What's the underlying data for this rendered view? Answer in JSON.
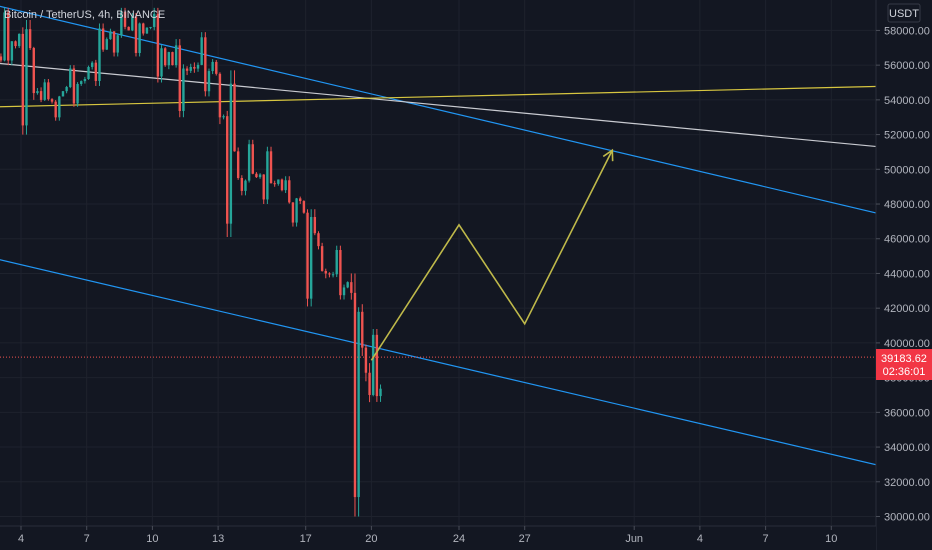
{
  "header": {
    "symbol_title": "Bitcoin / TetherUS, 4h, BINANCE"
  },
  "currency": {
    "label": "USDT"
  },
  "price_tag": {
    "price": "39183.62",
    "countdown": "02:36:01"
  },
  "colors": {
    "background": "#131722",
    "grid": "#1e222d",
    "up": "#26a69a",
    "down": "#ef5350",
    "trendline_blue": "#2196f3",
    "trendline_white": "#c9cbd1",
    "horizontal_yellow": "#d7c640",
    "projection_yellow": "#bfb94a",
    "price_line": "#ef5350",
    "axis_text": "#b2b5be"
  },
  "chart_data": {
    "type": "candlestick",
    "title": "Bitcoin / TetherUS, 4h, BINANCE",
    "timeframe": "4h",
    "x_tick_labels": [
      "4",
      "7",
      "10",
      "13",
      "17",
      "20",
      "24",
      "27",
      "Jun",
      "4",
      "7",
      "10"
    ],
    "x_tick_dates": [
      "2021-05-04",
      "2021-05-07",
      "2021-05-10",
      "2021-05-13",
      "2021-05-17",
      "2021-05-20",
      "2021-05-24",
      "2021-05-27",
      "2021-06-01",
      "2021-06-04",
      "2021-06-07",
      "2021-06-10"
    ],
    "y_ticks": [
      30000,
      32000,
      34000,
      36000,
      38000,
      40000,
      42000,
      44000,
      46000,
      48000,
      50000,
      52000,
      54000,
      56000,
      58000
    ],
    "y_tick_labels": [
      "30000.00",
      "32000.00",
      "34000.00",
      "36000.00",
      "38000.00",
      "40000.00",
      "42000.00",
      "44000.00",
      "46000.00",
      "48000.00",
      "50000.00",
      "52000.00",
      "54000.00",
      "56000.00",
      "58000.00"
    ],
    "ylim": [
      29500,
      59800
    ],
    "grid": true,
    "last_price": 39183.62,
    "candles": [
      {
        "date": "2021-05-03",
        "o": 56500,
        "h": 59300,
        "l": 56000,
        "c": 57800
      },
      {
        "date": "2021-05-04",
        "o": 57800,
        "h": 58600,
        "l": 52000,
        "c": 54000
      },
      {
        "date": "2021-05-05",
        "o": 54000,
        "h": 55200,
        "l": 52800,
        "c": 54500
      },
      {
        "date": "2021-05-06",
        "o": 54500,
        "h": 56000,
        "l": 53600,
        "c": 55200
      },
      {
        "date": "2021-05-07",
        "o": 55200,
        "h": 58400,
        "l": 54800,
        "c": 57500
      },
      {
        "date": "2021-05-08",
        "o": 57500,
        "h": 59300,
        "l": 56500,
        "c": 58000
      },
      {
        "date": "2021-05-09",
        "o": 58000,
        "h": 59000,
        "l": 56500,
        "c": 58200
      },
      {
        "date": "2021-05-10",
        "o": 58200,
        "h": 59300,
        "l": 55000,
        "c": 56000
      },
      {
        "date": "2021-05-11",
        "o": 56000,
        "h": 57500,
        "l": 53000,
        "c": 55800
      },
      {
        "date": "2021-05-12",
        "o": 55800,
        "h": 57900,
        "l": 54200,
        "c": 55500
      },
      {
        "date": "2021-05-13",
        "o": 55500,
        "h": 55700,
        "l": 46100,
        "c": 49500
      },
      {
        "date": "2021-05-14",
        "o": 49500,
        "h": 51700,
        "l": 48500,
        "c": 49700
      },
      {
        "date": "2021-05-15",
        "o": 49700,
        "h": 51300,
        "l": 48000,
        "c": 48800
      },
      {
        "date": "2021-05-16",
        "o": 48800,
        "h": 49600,
        "l": 46700,
        "c": 47500
      },
      {
        "date": "2021-05-17",
        "o": 47500,
        "h": 47700,
        "l": 42100,
        "c": 44000
      },
      {
        "date": "2021-05-18",
        "o": 44000,
        "h": 45600,
        "l": 42500,
        "c": 43500
      },
      {
        "date": "2021-05-19",
        "o": 43500,
        "h": 44000,
        "l": 30000,
        "c": 37000
      },
      {
        "date": "2021-05-20",
        "o": 37000,
        "h": 40800,
        "l": 36600,
        "c": 39183.62
      }
    ],
    "drawings": [
      {
        "kind": "trendline",
        "color": "blue",
        "points": [
          [
            "2021-05-03",
            59400
          ],
          [
            "2021-06-13",
            47200
          ]
        ]
      },
      {
        "kind": "trendline",
        "color": "blue",
        "points": [
          [
            "2021-05-03",
            44800
          ],
          [
            "2021-06-13",
            32700
          ]
        ]
      },
      {
        "kind": "trendline",
        "color": "white",
        "points": [
          [
            "2021-05-03",
            56100
          ],
          [
            "2021-06-13",
            51200
          ]
        ]
      },
      {
        "kind": "horizontal",
        "color": "yellow",
        "points": [
          [
            "2021-05-03",
            53600
          ],
          [
            "2021-06-13",
            54800
          ]
        ]
      },
      {
        "kind": "projection",
        "color": "yellow",
        "points": [
          [
            "2021-05-20",
            39000
          ],
          [
            "2021-05-24",
            46800
          ],
          [
            "2021-05-27",
            41100
          ],
          [
            "2021-05-31",
            51100
          ]
        ]
      }
    ]
  }
}
